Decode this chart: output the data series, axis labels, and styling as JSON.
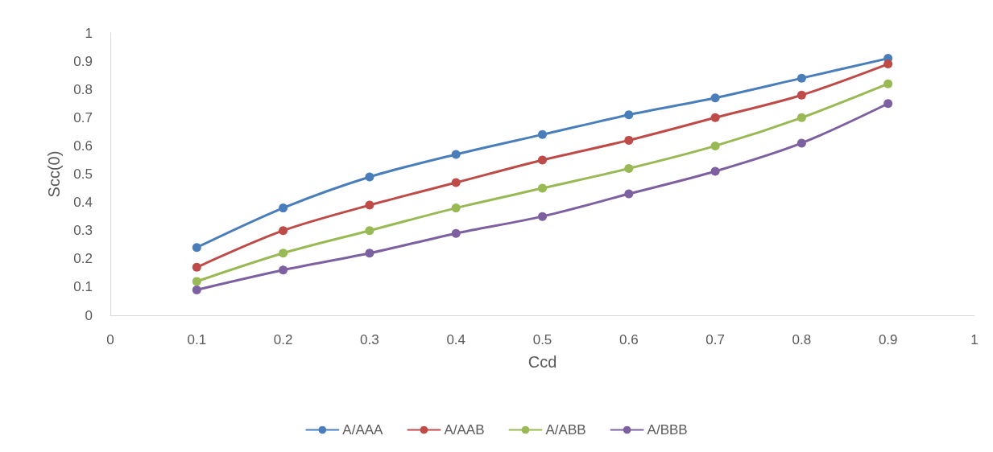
{
  "chart_data": {
    "type": "line",
    "xlabel": "Ccd",
    "ylabel": "Scc(0)",
    "x": [
      0.1,
      0.2,
      0.3,
      0.4,
      0.5,
      0.6,
      0.7,
      0.8,
      0.9
    ],
    "series": [
      {
        "name": "A/AAA",
        "color": "#4a7ebb",
        "values": [
          0.24,
          0.38,
          0.49,
          0.57,
          0.64,
          0.71,
          0.77,
          0.84,
          0.91
        ]
      },
      {
        "name": "A/AAB",
        "color": "#be4b48",
        "values": [
          0.17,
          0.3,
          0.39,
          0.47,
          0.55,
          0.62,
          0.7,
          0.78,
          0.89
        ]
      },
      {
        "name": "A/ABB",
        "color": "#98b954",
        "values": [
          0.12,
          0.22,
          0.3,
          0.38,
          0.45,
          0.52,
          0.6,
          0.7,
          0.82
        ]
      },
      {
        "name": "A/BBB",
        "color": "#7d60a0",
        "values": [
          0.09,
          0.16,
          0.22,
          0.29,
          0.35,
          0.43,
          0.51,
          0.61,
          0.75
        ]
      }
    ],
    "xlim": [
      0,
      1
    ],
    "xticks": [
      0,
      0.1,
      0.2,
      0.3,
      0.4,
      0.5,
      0.6,
      0.7,
      0.8,
      0.9,
      1
    ],
    "ylim": [
      0,
      1
    ],
    "yticks": [
      0,
      0.1,
      0.2,
      0.3,
      0.4,
      0.5,
      0.6,
      0.7,
      0.8,
      0.9,
      1
    ],
    "grid": false,
    "legend": "bottom",
    "marker": "circle",
    "line_style": "solid"
  }
}
